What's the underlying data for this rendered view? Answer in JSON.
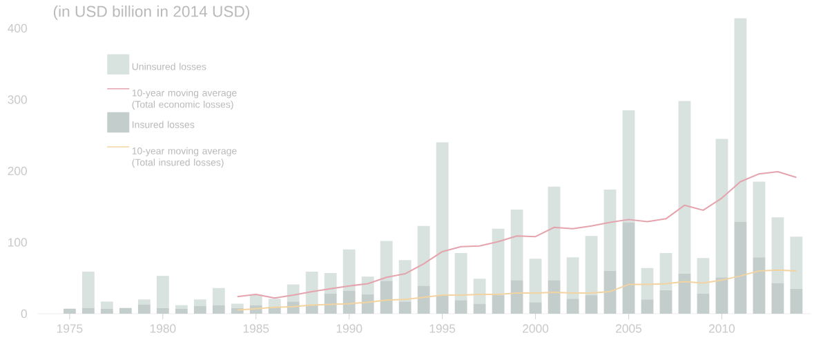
{
  "chart_data": {
    "type": "bar",
    "title": "(in USD billion in 2014 USD)",
    "x": [
      1975,
      1976,
      1977,
      1978,
      1979,
      1980,
      1981,
      1982,
      1983,
      1984,
      1985,
      1986,
      1987,
      1988,
      1989,
      1990,
      1991,
      1992,
      1993,
      1994,
      1995,
      1996,
      1997,
      1998,
      1999,
      2000,
      2001,
      2002,
      2003,
      2004,
      2005,
      2006,
      2007,
      2008,
      2009,
      2010,
      2011,
      2012,
      2013,
      2014
    ],
    "xlim": [
      1973.3,
      2014.8
    ],
    "xticks": [
      1975,
      1980,
      1985,
      1990,
      1995,
      2000,
      2005,
      2010
    ],
    "ylim": [
      0,
      414
    ],
    "yticks": [
      0,
      100,
      200,
      300,
      400
    ],
    "stacked": true,
    "legend": "top left",
    "series": [
      {
        "name": "Insured losses",
        "color": "#c3cdcb",
        "values": [
          7,
          8,
          7,
          8,
          13,
          8,
          7,
          11,
          12,
          8,
          12,
          10,
          17,
          13,
          28,
          32,
          27,
          46,
          17,
          39,
          26,
          19,
          14,
          26,
          47,
          16,
          47,
          21,
          26,
          60,
          128,
          20,
          33,
          56,
          28,
          51,
          129,
          79,
          43,
          35
        ]
      },
      {
        "name": "Uninsured losses",
        "color": "#d8e2df",
        "values": [
          0,
          51,
          10,
          0,
          7,
          45,
          5,
          9,
          24,
          6,
          15,
          11,
          24,
          46,
          29,
          58,
          25,
          56,
          58,
          84,
          214,
          66,
          35,
          93,
          99,
          61,
          131,
          58,
          83,
          114,
          157,
          44,
          52,
          242,
          50,
          194,
          285,
          106,
          92,
          73
        ]
      },
      {
        "name": "10-year moving average (Total economic losses)",
        "type": "line",
        "color": "#e5a3ad",
        "x": [
          1984,
          1985,
          1986,
          1987,
          1988,
          1989,
          1990,
          1991,
          1992,
          1993,
          1994,
          1995,
          1996,
          1997,
          1998,
          1999,
          2000,
          2001,
          2002,
          2003,
          2004,
          2005,
          2006,
          2007,
          2008,
          2009,
          2010,
          2011,
          2012,
          2013,
          2014
        ],
        "values": [
          24,
          27,
          22,
          26,
          31,
          35,
          39,
          42,
          51,
          56,
          70,
          87,
          94,
          95,
          101,
          109,
          108,
          121,
          119,
          123,
          128,
          132,
          129,
          133,
          152,
          145,
          162,
          185,
          196,
          199,
          191
        ]
      },
      {
        "name": "10-year moving average (Total insured losses)",
        "type": "line",
        "color": "#f3d3a0",
        "x": [
          1984,
          1985,
          1986,
          1987,
          1988,
          1989,
          1990,
          1991,
          1992,
          1993,
          1994,
          1995,
          1996,
          1997,
          1998,
          1999,
          2000,
          2001,
          2002,
          2003,
          2004,
          2005,
          2006,
          2007,
          2008,
          2009,
          2010,
          2011,
          2012,
          2013,
          2014
        ],
        "values": [
          5,
          7,
          9,
          10,
          12,
          13,
          14,
          16,
          19,
          20,
          23,
          26,
          26,
          27,
          27,
          29,
          29,
          30,
          29,
          29,
          31,
          41,
          41,
          42,
          45,
          43,
          47,
          53,
          60,
          61,
          60
        ]
      }
    ]
  }
}
